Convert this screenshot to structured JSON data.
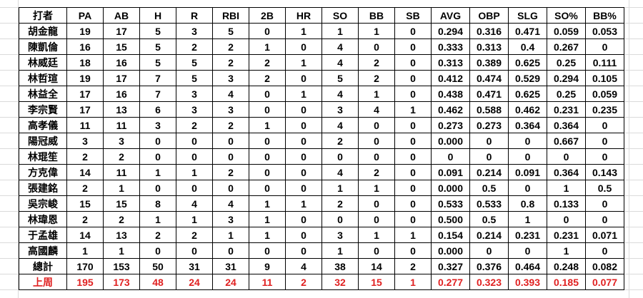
{
  "table": {
    "header": [
      "打者",
      "PA",
      "AB",
      "H",
      "R",
      "RBI",
      "2B",
      "HR",
      "SO",
      "BB",
      "SB",
      "AVG",
      "OBP",
      "SLG",
      "SO%",
      "BB%"
    ],
    "rows": [
      [
        "胡金龍",
        "19",
        "17",
        "5",
        "3",
        "5",
        "0",
        "1",
        "1",
        "1",
        "0",
        "0.294",
        "0.316",
        "0.471",
        "0.059",
        "0.053"
      ],
      [
        "陳凱倫",
        "16",
        "15",
        "5",
        "2",
        "2",
        "1",
        "0",
        "4",
        "0",
        "0",
        "0.333",
        "0.313",
        "0.4",
        "0.267",
        "0"
      ],
      [
        "林威廷",
        "18",
        "16",
        "5",
        "5",
        "2",
        "2",
        "1",
        "4",
        "2",
        "0",
        "0.313",
        "0.389",
        "0.625",
        "0.25",
        "0.111"
      ],
      [
        "林哲瑄",
        "19",
        "17",
        "7",
        "5",
        "3",
        "2",
        "0",
        "5",
        "2",
        "0",
        "0.412",
        "0.474",
        "0.529",
        "0.294",
        "0.105"
      ],
      [
        "林益全",
        "17",
        "16",
        "7",
        "3",
        "4",
        "0",
        "1",
        "4",
        "1",
        "0",
        "0.438",
        "0.471",
        "0.625",
        "0.25",
        "0.059"
      ],
      [
        "李宗賢",
        "17",
        "13",
        "6",
        "3",
        "3",
        "0",
        "0",
        "3",
        "4",
        "1",
        "0.462",
        "0.588",
        "0.462",
        "0.231",
        "0.235"
      ],
      [
        "高孝儀",
        "11",
        "11",
        "3",
        "2",
        "2",
        "1",
        "0",
        "4",
        "0",
        "0",
        "0.273",
        "0.273",
        "0.364",
        "0.364",
        "0"
      ],
      [
        "陽冠威",
        "3",
        "3",
        "0",
        "0",
        "0",
        "0",
        "0",
        "2",
        "0",
        "0",
        "0.000",
        "0",
        "0",
        "0.667",
        "0"
      ],
      [
        "林琨笙",
        "2",
        "2",
        "0",
        "0",
        "0",
        "0",
        "0",
        "0",
        "0",
        "0",
        "0",
        "0",
        "0",
        "0",
        "0"
      ],
      [
        "方克偉",
        "14",
        "11",
        "1",
        "1",
        "2",
        "0",
        "0",
        "4",
        "2",
        "0",
        "0.091",
        "0.214",
        "0.091",
        "0.364",
        "0.143"
      ],
      [
        "張建銘",
        "2",
        "1",
        "0",
        "0",
        "0",
        "0",
        "0",
        "1",
        "1",
        "0",
        "0.000",
        "0.5",
        "0",
        "1",
        "0.5"
      ],
      [
        "吳宗峻",
        "15",
        "15",
        "8",
        "4",
        "4",
        "1",
        "1",
        "2",
        "0",
        "0",
        "0.533",
        "0.533",
        "0.8",
        "0.133",
        "0"
      ],
      [
        "林瑋恩",
        "2",
        "2",
        "1",
        "1",
        "3",
        "1",
        "0",
        "0",
        "0",
        "0",
        "0.500",
        "0.5",
        "1",
        "0",
        "0"
      ],
      [
        "于孟雄",
        "14",
        "13",
        "2",
        "2",
        "1",
        "1",
        "0",
        "3",
        "1",
        "1",
        "0.154",
        "0.214",
        "0.231",
        "0.231",
        "0.071"
      ],
      [
        "高國麟",
        "1",
        "1",
        "0",
        "0",
        "0",
        "0",
        "0",
        "1",
        "0",
        "0",
        "0.000",
        "0",
        "0",
        "1",
        "0"
      ],
      [
        "總計",
        "170",
        "153",
        "50",
        "31",
        "31",
        "9",
        "4",
        "38",
        "14",
        "2",
        "0.327",
        "0.376",
        "0.464",
        "0.248",
        "0.082"
      ],
      [
        "上周",
        "195",
        "173",
        "48",
        "24",
        "24",
        "11",
        "2",
        "32",
        "15",
        "1",
        "0.277",
        "0.323",
        "0.393",
        "0.185",
        "0.077"
      ]
    ]
  }
}
